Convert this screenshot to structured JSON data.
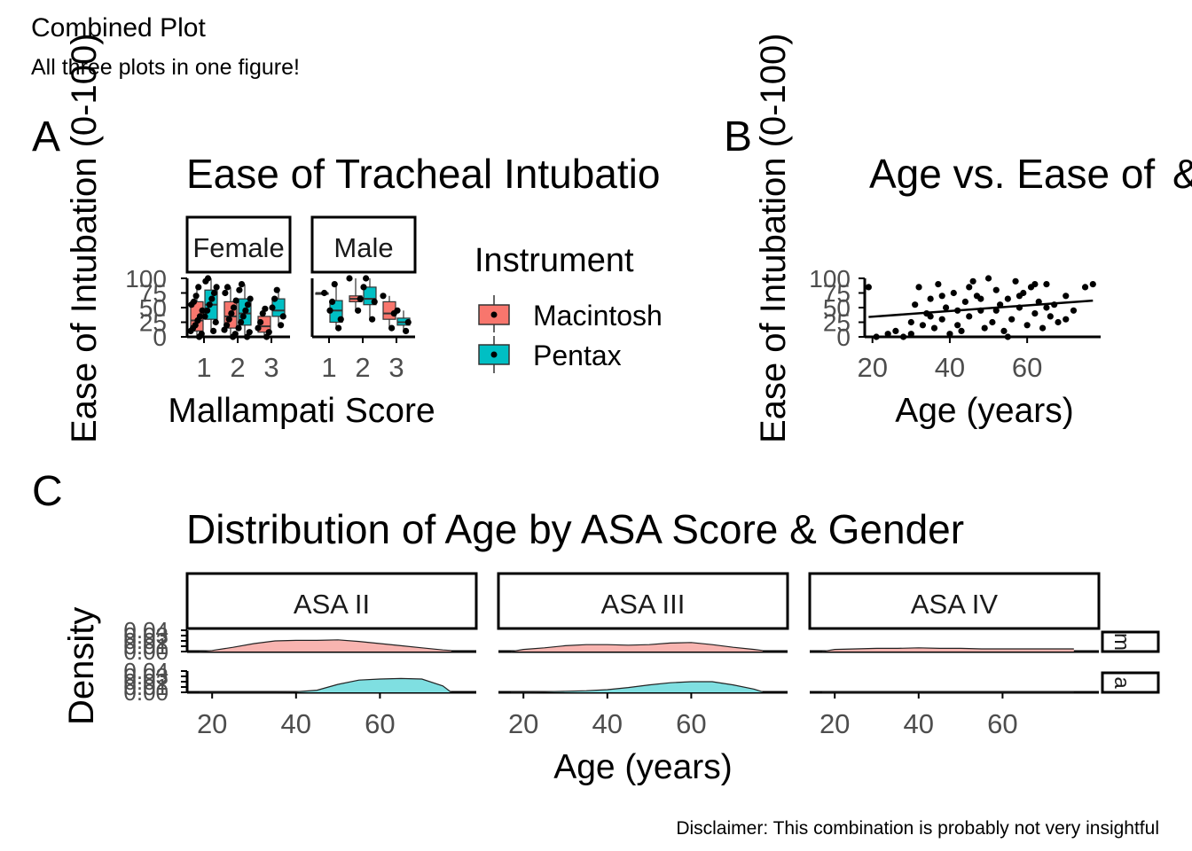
{
  "figure": {
    "title": "Combined Plot",
    "subtitle": "All three plots in one figure!",
    "caption": "Disclaimer: This combination is probably not very insightful"
  },
  "colors": {
    "macintosh": "#F8766D",
    "pentax": "#00BFC4",
    "female_density": "#F8B4B0",
    "male_density": "#7FDFE1",
    "ink": "#000000",
    "tick_text": "#4D4D4D"
  },
  "chart_data": [
    {
      "panel_tag": "A",
      "type": "box",
      "title": "Ease of Tracheal Intubatio",
      "xlabel": "Mallampati Score",
      "ylabel": "Ease of Intubation (0-100)",
      "ylim": [
        0,
        100
      ],
      "yticks": [
        0,
        25,
        50,
        75,
        100
      ],
      "facets": [
        "Female",
        "Male"
      ],
      "categories": [
        "1",
        "2",
        "3"
      ],
      "legend": {
        "title": "Instrument",
        "position": "right",
        "entries": [
          "Macintosh",
          "Pentax"
        ]
      },
      "boxes": [
        {
          "facet": "Female",
          "category": "1",
          "group": "Macintosh",
          "q1": 10,
          "median": 28,
          "q3": 60,
          "min": 0,
          "max": 85
        },
        {
          "facet": "Female",
          "category": "1",
          "group": "Pentax",
          "q1": 30,
          "median": 55,
          "q3": 80,
          "min": 10,
          "max": 100
        },
        {
          "facet": "Female",
          "category": "2",
          "group": "Macintosh",
          "q1": 15,
          "median": 35,
          "q3": 60,
          "min": 0,
          "max": 85
        },
        {
          "facet": "Female",
          "category": "2",
          "group": "Pentax",
          "q1": 20,
          "median": 40,
          "q3": 65,
          "min": 0,
          "max": 90
        },
        {
          "facet": "Female",
          "category": "3",
          "group": "Macintosh",
          "q1": 8,
          "median": 18,
          "q3": 35,
          "min": 0,
          "max": 48
        },
        {
          "facet": "Female",
          "category": "3",
          "group": "Pentax",
          "q1": 35,
          "median": 45,
          "q3": 65,
          "min": 20,
          "max": 80
        },
        {
          "facet": "Male",
          "category": "1",
          "group": "Macintosh",
          "q1": 75,
          "median": 75,
          "q3": 75,
          "min": 75,
          "max": 75
        },
        {
          "facet": "Male",
          "category": "1",
          "group": "Pentax",
          "q1": 25,
          "median": 45,
          "q3": 62,
          "min": 15,
          "max": 90
        },
        {
          "facet": "Male",
          "category": "2",
          "group": "Macintosh",
          "q1": 60,
          "median": 65,
          "q3": 70,
          "min": 45,
          "max": 100
        },
        {
          "facet": "Male",
          "category": "2",
          "group": "Pentax",
          "q1": 55,
          "median": 65,
          "q3": 85,
          "min": 30,
          "max": 100
        },
        {
          "facet": "Male",
          "category": "3",
          "group": "Macintosh",
          "q1": 30,
          "median": 40,
          "q3": 60,
          "min": 15,
          "max": 70
        },
        {
          "facet": "Male",
          "category": "3",
          "group": "Pentax",
          "q1": 20,
          "median": 25,
          "q3": 32,
          "min": 10,
          "max": 45
        }
      ],
      "points": [
        {
          "facet": "Female",
          "category": "1",
          "group": "Macintosh",
          "values": [
            0,
            5,
            10,
            15,
            20,
            28,
            35,
            45,
            55,
            60,
            70,
            85
          ]
        },
        {
          "facet": "Female",
          "category": "1",
          "group": "Pentax",
          "values": [
            10,
            25,
            35,
            45,
            55,
            65,
            75,
            85,
            95,
            100
          ]
        },
        {
          "facet": "Female",
          "category": "2",
          "group": "Macintosh",
          "values": [
            0,
            5,
            12,
            20,
            30,
            40,
            50,
            62,
            75,
            85
          ]
        },
        {
          "facet": "Female",
          "category": "2",
          "group": "Pentax",
          "values": [
            0,
            8,
            15,
            25,
            35,
            45,
            55,
            65,
            80,
            90
          ]
        },
        {
          "facet": "Female",
          "category": "3",
          "group": "Macintosh",
          "values": [
            0,
            8,
            15,
            25,
            40,
            48
          ]
        },
        {
          "facet": "Female",
          "category": "3",
          "group": "Pentax",
          "values": [
            20,
            35,
            50,
            65,
            80
          ]
        },
        {
          "facet": "Male",
          "category": "1",
          "group": "Macintosh",
          "values": [
            75
          ]
        },
        {
          "facet": "Male",
          "category": "1",
          "group": "Pentax",
          "values": [
            15,
            30,
            45,
            60,
            90
          ]
        },
        {
          "facet": "Male",
          "category": "2",
          "group": "Macintosh",
          "values": [
            45,
            65,
            100
          ]
        },
        {
          "facet": "Male",
          "category": "2",
          "group": "Pentax",
          "values": [
            30,
            60,
            85,
            100
          ]
        },
        {
          "facet": "Male",
          "category": "3",
          "group": "Macintosh",
          "values": [
            15,
            40,
            70
          ]
        },
        {
          "facet": "Male",
          "category": "3",
          "group": "Pentax",
          "values": [
            10,
            25,
            45
          ]
        }
      ]
    },
    {
      "panel_tag": "B",
      "type": "scatter",
      "title": "Age vs. Ease of",
      "title_clip_char": "&",
      "xlabel": "Age (years)",
      "ylabel": "Ease of Intubation (0-100)",
      "xlim": [
        18,
        79
      ],
      "ylim": [
        0,
        100
      ],
      "xticks": [
        20,
        40,
        60
      ],
      "yticks": [
        0,
        25,
        50,
        75,
        100
      ],
      "points": [
        [
          19,
          85
        ],
        [
          21,
          0
        ],
        [
          24,
          5
        ],
        [
          26,
          10
        ],
        [
          28,
          0
        ],
        [
          30,
          25
        ],
        [
          31,
          55
        ],
        [
          32,
          85
        ],
        [
          33,
          20
        ],
        [
          34,
          40
        ],
        [
          35,
          65
        ],
        [
          36,
          15
        ],
        [
          37,
          90
        ],
        [
          38,
          30
        ],
        [
          39,
          50
        ],
        [
          40,
          5
        ],
        [
          41,
          75
        ],
        [
          42,
          20
        ],
        [
          43,
          10
        ],
        [
          44,
          60
        ],
        [
          45,
          35
        ],
        [
          46,
          95
        ],
        [
          47,
          70
        ],
        [
          48,
          45
        ],
        [
          49,
          15
        ],
        [
          50,
          100
        ],
        [
          51,
          25
        ],
        [
          52,
          80
        ],
        [
          53,
          55
        ],
        [
          54,
          10
        ],
        [
          55,
          65
        ],
        [
          56,
          30
        ],
        [
          57,
          95
        ],
        [
          58,
          50
        ],
        [
          59,
          75
        ],
        [
          60,
          20
        ],
        [
          61,
          85
        ],
        [
          62,
          40
        ],
        [
          63,
          60
        ],
        [
          64,
          15
        ],
        [
          65,
          90
        ],
        [
          66,
          35
        ],
        [
          67,
          55
        ],
        [
          68,
          25
        ],
        [
          70,
          70
        ],
        [
          72,
          45
        ],
        [
          75,
          85
        ],
        [
          77,
          90
        ],
        [
          30,
          5
        ],
        [
          35,
          35
        ],
        [
          45,
          85
        ],
        [
          52,
          45
        ],
        [
          58,
          70
        ],
        [
          62,
          90
        ],
        [
          55,
          0
        ],
        [
          48,
          65
        ],
        [
          42,
          45
        ],
        [
          38,
          70
        ],
        [
          65,
          50
        ],
        [
          70,
          30
        ]
      ],
      "trend_line": {
        "x": [
          19,
          77
        ],
        "y": [
          34,
          62
        ]
      }
    },
    {
      "panel_tag": "C",
      "type": "area",
      "title": "Distribution of Age by ASA Score & Gender",
      "xlabel": "Age (years)",
      "ylabel": "Density",
      "xlim": [
        17,
        80
      ],
      "xticks": [
        20,
        40,
        60
      ],
      "y_ticklabels": [
        "0.00",
        "0.01",
        "0.02",
        "0.03",
        "0.04"
      ],
      "ylim": [
        0,
        0.04
      ],
      "facet_cols": [
        "ASA II",
        "ASA III",
        "ASA IV"
      ],
      "facet_rows": [
        "m",
        "a"
      ],
      "x": [
        17,
        20,
        25,
        30,
        35,
        40,
        45,
        50,
        55,
        60,
        65,
        70,
        75,
        77
      ],
      "series": [
        {
          "col": "ASA II",
          "row": "m",
          "values": [
            0.0,
            0.002,
            0.008,
            0.015,
            0.02,
            0.021,
            0.021,
            0.022,
            0.019,
            0.015,
            0.011,
            0.007,
            0.003,
            0.002
          ]
        },
        {
          "col": "ASA III",
          "row": "m",
          "values": [
            0.0,
            0.004,
            0.007,
            0.011,
            0.013,
            0.013,
            0.012,
            0.013,
            0.016,
            0.017,
            0.013,
            0.008,
            0.004,
            0.002
          ]
        },
        {
          "col": "ASA IV",
          "row": "m",
          "values": [
            0.0,
            0.004,
            0.005,
            0.006,
            0.006,
            0.007,
            0.006,
            0.006,
            0.005,
            0.005,
            0.005,
            0.005,
            0.005,
            0.005
          ]
        },
        {
          "col": "ASA II",
          "row": "a",
          "values": [
            0.0,
            0.0,
            0.0,
            0.0,
            0.0,
            0.001,
            0.004,
            0.015,
            0.023,
            0.025,
            0.026,
            0.025,
            0.012,
            0.0
          ]
        },
        {
          "col": "ASA III",
          "row": "a",
          "values": [
            0.0,
            0.0,
            0.001,
            0.002,
            0.003,
            0.005,
            0.009,
            0.014,
            0.018,
            0.02,
            0.02,
            0.014,
            0.006,
            0.001
          ]
        },
        {
          "col": "ASA IV",
          "row": "a",
          "values": [
            0.0,
            0.0,
            0.0,
            0.0,
            0.0,
            0.0,
            0.0,
            0.0,
            0.0,
            0.0,
            0.0,
            0.0,
            0.0,
            0.0
          ]
        }
      ]
    }
  ]
}
